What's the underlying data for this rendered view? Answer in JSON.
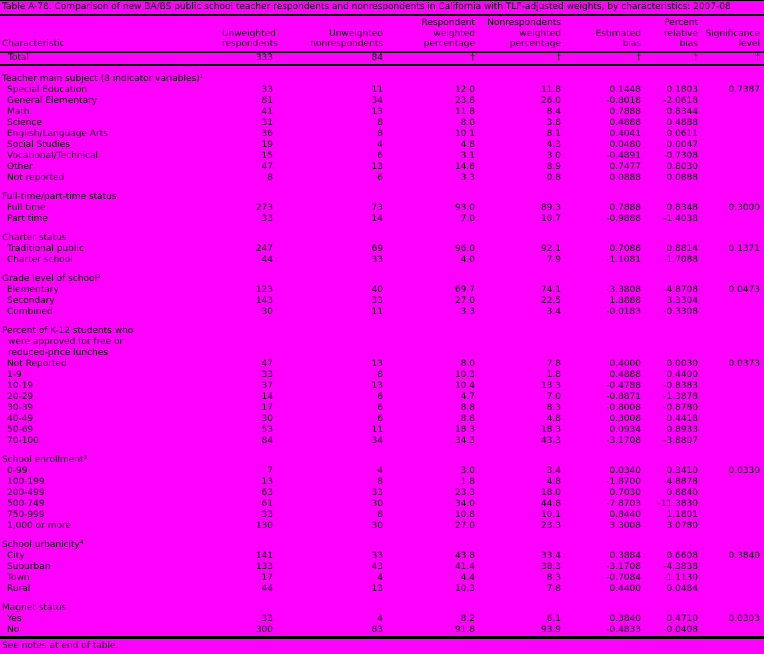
{
  "colors": {
    "background": "#FF00FF",
    "text": "#000000",
    "rule": "#000000"
  },
  "title": "Table A-78. Comparison of new BA/BS public school teacher respondents and nonrespondents in California with TLF-adjusted weights, by characteristics: 2007-08",
  "footer": "See notes at end of table.",
  "columns": [
    "Characteristic",
    "Unweighted\nrespondents",
    "Unweighted\nnonrespondents",
    "Respondent\nweighted\npercentage",
    "Nonrespondents\nweighted\npercentage",
    "Estimated\nbias",
    "Percent\nrelative\nbias",
    "Significance\nlevel"
  ],
  "total_row": {
    "label": "Total",
    "values": [
      "333",
      "84",
      "†",
      "†",
      "†",
      "†",
      "†"
    ]
  },
  "sections": [
    {
      "heading": [
        "Teacher main subject (8 indicator variables)¹"
      ],
      "rows": [
        {
          "label": "Special Education",
          "values": [
            "33",
            "11",
            "12.0",
            "11.8",
            "0.1448",
            "0.1803",
            "0.7387"
          ]
        },
        {
          "label": "General Elementary",
          "values": [
            "81",
            "34",
            "23.8",
            "26.0",
            "-0.8018",
            "-2.0618",
            ""
          ]
        },
        {
          "label": "Math",
          "values": [
            "41",
            "13",
            "11.8",
            "8.4",
            "0.7888",
            "0.8344",
            ""
          ]
        },
        {
          "label": "Science",
          "values": [
            "31",
            "8",
            "8.0",
            "3.8",
            "0.4888",
            "0.4888",
            ""
          ]
        },
        {
          "label": "English/Language Arts",
          "values": [
            "36",
            "8",
            "10.1",
            "8.1",
            "0.4041",
            "0.0611",
            ""
          ]
        },
        {
          "label": "Social Studies",
          "values": [
            "19",
            "4",
            "4.8",
            "4.3",
            "0.0480",
            "0.0047",
            ""
          ]
        },
        {
          "label": "Vocational/Technical",
          "values": [
            "15",
            "6",
            "3.1",
            "3.0",
            "-0.4891",
            "-0.7308",
            ""
          ]
        },
        {
          "label": "Other",
          "values": [
            "47",
            "13",
            "14.8",
            "8.9",
            "0.7477",
            "0.8030",
            ""
          ]
        },
        {
          "label": "Not reported",
          "values": [
            "8",
            "6",
            "3.3",
            "0.8",
            "0.0888",
            "0.0888",
            ""
          ]
        }
      ]
    },
    {
      "heading": [
        "Full-time/part-time status"
      ],
      "rows": [
        {
          "label": "Full time",
          "values": [
            "273",
            "73",
            "93.0",
            "89.3",
            "0.7888",
            "0.8348",
            "0.3000"
          ]
        },
        {
          "label": "Part time",
          "values": [
            "33",
            "14",
            "7.0",
            "10.7",
            "-0.9888",
            "-1.4038",
            ""
          ]
        }
      ]
    },
    {
      "heading": [
        "Charter status"
      ],
      "rows": [
        {
          "label": "Traditional public",
          "values": [
            "247",
            "69",
            "96.0",
            "92.1",
            "0.7088",
            "0.8814",
            "0.1371"
          ]
        },
        {
          "label": "Charter school",
          "values": [
            "44",
            "33",
            "4.0",
            "7.9",
            "-1.1081",
            "-1.7088",
            ""
          ]
        }
      ]
    },
    {
      "heading": [
        "Grade level of school²"
      ],
      "rows": [
        {
          "label": "Elementary",
          "values": [
            "123",
            "40",
            "69.7",
            "74.1",
            "-3.3808",
            "-4.8708",
            "0.0473"
          ]
        },
        {
          "label": "Secondary",
          "values": [
            "143",
            "33",
            "27.0",
            "22.5",
            "1.8888",
            "3.3304",
            ""
          ]
        },
        {
          "label": "Combined",
          "values": [
            "30",
            "11",
            "3.3",
            "3.4",
            "-0.0183",
            "-0.3308",
            ""
          ]
        }
      ]
    },
    {
      "heading": [
        "Percent of K-12 students who",
        "were approved for free or",
        "reduced-price lunches"
      ],
      "rows": [
        {
          "label": "Not Reported",
          "values": [
            "47",
            "13",
            "8.0",
            "7.8",
            "0.4000",
            "0.0030",
            "0.0373"
          ]
        },
        {
          "label": "1-9",
          "values": [
            "33",
            "8",
            "10.3",
            "1.8",
            "0.4888",
            "0.4400",
            ""
          ]
        },
        {
          "label": "10-19",
          "values": [
            "37",
            "13",
            "10.4",
            "13.3",
            "-0.4788",
            "-0.8383",
            ""
          ]
        },
        {
          "label": "20-29",
          "values": [
            "14",
            "6",
            "4.7",
            "7.0",
            "-0.8871",
            "-1.3878",
            ""
          ]
        },
        {
          "label": "30-39",
          "values": [
            "17",
            "6",
            "8.8",
            "8.3",
            "-0.8008",
            "-0.8780",
            ""
          ]
        },
        {
          "label": "40-49",
          "values": [
            "30",
            "6",
            "8.8",
            "4.8",
            "0.3008",
            "0.4418",
            ""
          ]
        },
        {
          "label": "50-69",
          "values": [
            "53",
            "11",
            "18.3",
            "18.3",
            "0.0934",
            "0.8933",
            ""
          ]
        },
        {
          "label": "70-100",
          "values": [
            "84",
            "34",
            "34.3",
            "43.3",
            "-3.1708",
            "-3.8807",
            ""
          ]
        }
      ]
    },
    {
      "heading": [
        "School enrollment³"
      ],
      "rows": [
        {
          "label": "0-99",
          "values": [
            "7",
            "4",
            "3.0",
            "3.4",
            "0.0340",
            "0.3410",
            "0.0330"
          ]
        },
        {
          "label": "100-199",
          "values": [
            "13",
            "8",
            "1.8",
            "4.8",
            "-1.8700",
            "-4.8878",
            ""
          ]
        },
        {
          "label": "200-499",
          "values": [
            "63",
            "33",
            "23.3",
            "18.0",
            "0.7030",
            "0.8840",
            ""
          ]
        },
        {
          "label": "500-749",
          "values": [
            "61",
            "30",
            "34.0",
            "44.8",
            "-7.8703",
            "-11.3830",
            ""
          ]
        },
        {
          "label": "750-999",
          "values": [
            "33",
            "8",
            "10.8",
            "10.1",
            "0.8440",
            "1.1801",
            ""
          ]
        },
        {
          "label": "1,000 or more",
          "values": [
            "130",
            "30",
            "27.0",
            "23.3",
            "3.3008",
            "3.0780",
            ""
          ]
        }
      ]
    },
    {
      "heading": [
        "School urbanicity⁴"
      ],
      "rows": [
        {
          "label": "City",
          "values": [
            "141",
            "33",
            "43.8",
            "33.4",
            "0.3884",
            "0.6608",
            "0.3840"
          ]
        },
        {
          "label": "Suburban",
          "values": [
            "133",
            "43",
            "41.4",
            "38.3",
            "-3.1708",
            "-4.3838",
            ""
          ]
        },
        {
          "label": "Town",
          "values": [
            "17",
            "4",
            "4.4",
            "8.3",
            "-0.7084",
            "-1.1130",
            ""
          ]
        },
        {
          "label": "Rural",
          "values": [
            "44",
            "13",
            "10.3",
            "7.8",
            "0.4400",
            "0.0484",
            ""
          ]
        }
      ]
    },
    {
      "heading": [
        "Magnet status"
      ],
      "rows": [
        {
          "label": "Yes",
          "values": [
            "33",
            "4",
            "8.2",
            "6.1",
            "0.3840",
            "0.4710",
            "0.0303"
          ]
        },
        {
          "label": "No",
          "values": [
            "300",
            "83",
            "91.8",
            "93.9",
            "-0.4833",
            "-0.0408",
            ""
          ]
        }
      ]
    }
  ]
}
